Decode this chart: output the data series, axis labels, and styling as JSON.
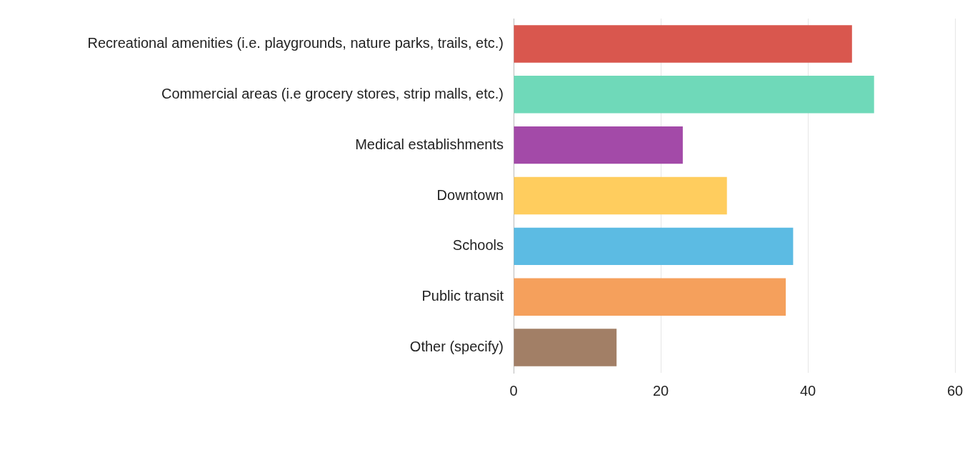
{
  "chart_data": {
    "type": "bar",
    "orientation": "horizontal",
    "categories": [
      "Recreational amenities (i.e. playgrounds, nature parks, trails, etc.)",
      "Commercial areas (i.e grocery stores, strip malls, etc.)",
      "Medical establishments",
      "Downtown",
      "Schools",
      "Public transit",
      "Other (specify)"
    ],
    "values": [
      46,
      49,
      23,
      29,
      38,
      37,
      14
    ],
    "colors": [
      "#d9574e",
      "#6fd9b9",
      "#a34aa8",
      "#ffcd5e",
      "#5cbbe3",
      "#f5a05c",
      "#a27f66"
    ],
    "xlim": [
      0,
      60
    ],
    "xticks": [
      0,
      20,
      40,
      60
    ],
    "grid": "x"
  }
}
